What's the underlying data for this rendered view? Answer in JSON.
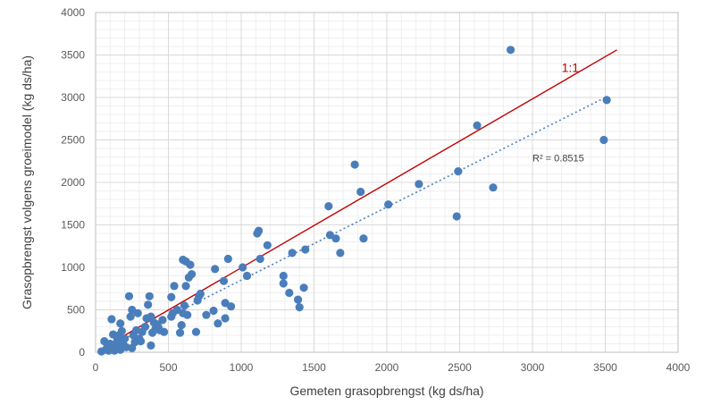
{
  "chart_data": {
    "type": "scatter",
    "xlabel": "Gemeten grasopbrengst (kg ds/ha)",
    "ylabel": "Grasopbrengst volgens groeimodel (kg ds/ha)",
    "xlim": [
      0,
      4000
    ],
    "ylim": [
      0,
      4000
    ],
    "x_ticks": [
      "0",
      "500",
      "1000",
      "1500",
      "2000",
      "2500",
      "3000",
      "3500",
      "4000"
    ],
    "y_ticks": [
      "0",
      "500",
      "1000",
      "1500",
      "2000",
      "2500",
      "3000",
      "3500",
      "4000"
    ],
    "grid": "major and minor",
    "marker_color": "#4a7ebb",
    "identity_line": {
      "label": "1:1",
      "color": "#c00000",
      "from": [
        130,
        130
      ],
      "to": [
        3580,
        3560
      ]
    },
    "trendline": {
      "label": "R² = 0.8515",
      "color": "#4a7ebb",
      "style": "dotted",
      "from": [
        140,
        110
      ],
      "to": [
        3500,
        3000
      ]
    },
    "points": [
      [
        40,
        10
      ],
      [
        60,
        130
      ],
      [
        70,
        30
      ],
      [
        80,
        60
      ],
      [
        90,
        20
      ],
      [
        100,
        100
      ],
      [
        110,
        50
      ],
      [
        110,
        390
      ],
      [
        120,
        210
      ],
      [
        130,
        20
      ],
      [
        140,
        100
      ],
      [
        150,
        150
      ],
      [
        150,
        60
      ],
      [
        160,
        200
      ],
      [
        170,
        30
      ],
      [
        170,
        340
      ],
      [
        180,
        250
      ],
      [
        190,
        100
      ],
      [
        200,
        160
      ],
      [
        210,
        60
      ],
      [
        230,
        660
      ],
      [
        240,
        420
      ],
      [
        250,
        500
      ],
      [
        250,
        50
      ],
      [
        260,
        200
      ],
      [
        270,
        120
      ],
      [
        280,
        260
      ],
      [
        290,
        460
      ],
      [
        300,
        160
      ],
      [
        310,
        130
      ],
      [
        320,
        240
      ],
      [
        340,
        300
      ],
      [
        350,
        400
      ],
      [
        360,
        560
      ],
      [
        370,
        660
      ],
      [
        380,
        80
      ],
      [
        380,
        420
      ],
      [
        390,
        230
      ],
      [
        400,
        350
      ],
      [
        410,
        270
      ],
      [
        420,
        330
      ],
      [
        430,
        300
      ],
      [
        440,
        260
      ],
      [
        460,
        380
      ],
      [
        470,
        240
      ],
      [
        520,
        420
      ],
      [
        520,
        650
      ],
      [
        530,
        460
      ],
      [
        540,
        780
      ],
      [
        560,
        500
      ],
      [
        580,
        230
      ],
      [
        590,
        320
      ],
      [
        600,
        1090
      ],
      [
        600,
        460
      ],
      [
        610,
        550
      ],
      [
        620,
        1070
      ],
      [
        620,
        780
      ],
      [
        630,
        440
      ],
      [
        640,
        880
      ],
      [
        650,
        1030
      ],
      [
        660,
        920
      ],
      [
        690,
        240
      ],
      [
        700,
        610
      ],
      [
        710,
        660
      ],
      [
        720,
        690
      ],
      [
        760,
        440
      ],
      [
        810,
        490
      ],
      [
        820,
        980
      ],
      [
        840,
        340
      ],
      [
        880,
        840
      ],
      [
        890,
        400
      ],
      [
        890,
        580
      ],
      [
        910,
        1100
      ],
      [
        930,
        540
      ],
      [
        1010,
        1000
      ],
      [
        1040,
        900
      ],
      [
        1110,
        1400
      ],
      [
        1120,
        1430
      ],
      [
        1130,
        1100
      ],
      [
        1180,
        1260
      ],
      [
        1290,
        900
      ],
      [
        1290,
        810
      ],
      [
        1330,
        700
      ],
      [
        1350,
        1170
      ],
      [
        1390,
        620
      ],
      [
        1400,
        530
      ],
      [
        1430,
        760
      ],
      [
        1440,
        1210
      ],
      [
        1600,
        1720
      ],
      [
        1610,
        1380
      ],
      [
        1650,
        1340
      ],
      [
        1680,
        1170
      ],
      [
        1780,
        2210
      ],
      [
        1820,
        1890
      ],
      [
        1840,
        1340
      ],
      [
        2010,
        1740
      ],
      [
        2220,
        1980
      ],
      [
        2480,
        1600
      ],
      [
        2490,
        2130
      ],
      [
        2620,
        2670
      ],
      [
        2730,
        1940
      ],
      [
        2850,
        3560
      ],
      [
        3490,
        2500
      ],
      [
        3510,
        2970
      ]
    ]
  }
}
